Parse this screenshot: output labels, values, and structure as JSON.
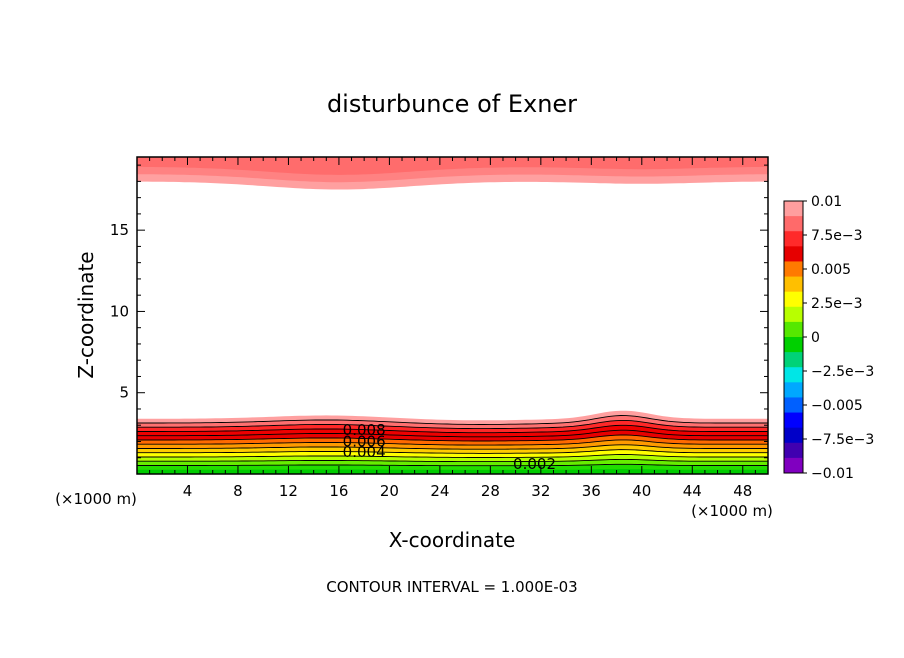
{
  "chart_data": {
    "type": "contour",
    "title": "disturbunce of Exner",
    "xlabel": "X-coordinate",
    "ylabel": "Z-coordinate",
    "x_unit": "(×1000 m)",
    "y_unit": "(×1000 m)",
    "xlim": [
      0,
      50
    ],
    "ylim": [
      0,
      19.5
    ],
    "x_ticks": [
      4,
      8,
      12,
      16,
      20,
      24,
      28,
      32,
      36,
      40,
      44,
      48
    ],
    "y_ticks": [
      5,
      10,
      15
    ],
    "footer": "CONTOUR INTERVAL = 1.000E-03",
    "contour_labels": [
      {
        "text": "0.008",
        "x": 18,
        "z": 2.7
      },
      {
        "text": "0.006",
        "x": 18,
        "z": 2.0
      },
      {
        "text": "0.004",
        "x": 18,
        "z": 1.35
      },
      {
        "text": "0.002",
        "x": 31.5,
        "z": 0.6
      }
    ],
    "colorbar": {
      "range": [
        -0.01,
        0.01
      ],
      "tick_labels": [
        "0.01",
        "7.5e-3",
        "0.005",
        "2.5e-3",
        "0",
        "-2.5e-3",
        "-0.005",
        "-7.5e-3",
        "-0.01"
      ],
      "colors": [
        "#ff9e9e",
        "#ff6a6a",
        "#ff2a2a",
        "#e60000",
        "#ff7a00",
        "#ffbf00",
        "#ffff00",
        "#b8ff00",
        "#55e800",
        "#00d000",
        "#00d278",
        "#00e6e6",
        "#00a8ff",
        "#0060ff",
        "#0000ff",
        "#0000c8",
        "#4000b0",
        "#8000c0"
      ]
    },
    "fields": {
      "top_band": {
        "base_z": 18.0,
        "dip_at_x": 16,
        "dip_depth": 0.5,
        "second_dip_x": 40
      },
      "bottom_band": {
        "top_z": 3.4,
        "bump_at_x": 38.5,
        "bump_height": 0.5
      }
    }
  }
}
